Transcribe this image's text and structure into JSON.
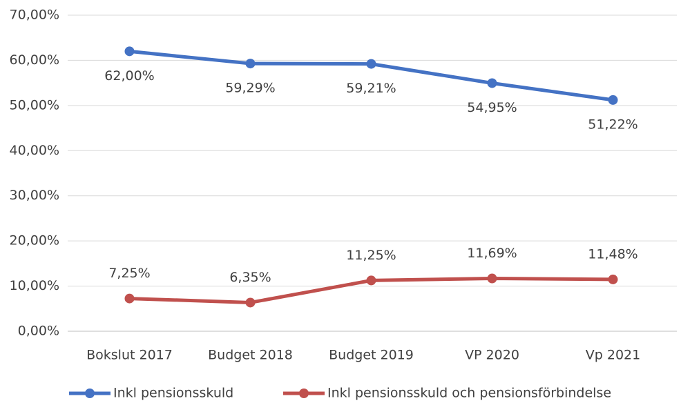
{
  "chart_data": {
    "type": "line",
    "categories": [
      "Bokslut 2017",
      "Budget 2018",
      "Budget 2019",
      "VP 2020",
      "Vp 2021"
    ],
    "series": [
      {
        "name": "Inkl pensionsskuld",
        "color": "#4472c4",
        "values": [
          62.0,
          59.29,
          59.21,
          54.95,
          51.22
        ],
        "value_labels": [
          "62,00%",
          "59,29%",
          "59,21%",
          "54,95%",
          "51,22%"
        ],
        "label_position": "below"
      },
      {
        "name": "Inkl pensionsskuld och pensionsförbindelse",
        "color": "#c0504d",
        "values": [
          7.25,
          6.35,
          11.25,
          11.69,
          11.48
        ],
        "value_labels": [
          "7,25%",
          "6,35%",
          "11,25%",
          "11,69%",
          "11,48%"
        ],
        "label_position": "above"
      }
    ],
    "ylim": [
      0,
      70
    ],
    "yticks": [
      {
        "value": 0,
        "label": "0,00%"
      },
      {
        "value": 10,
        "label": "10,00%"
      },
      {
        "value": 20,
        "label": "20,00%"
      },
      {
        "value": 30,
        "label": "30,00%"
      },
      {
        "value": 40,
        "label": "40,00%"
      },
      {
        "value": 50,
        "label": "50,00%"
      },
      {
        "value": 60,
        "label": "60,00%"
      },
      {
        "value": 70,
        "label": "70,00%"
      }
    ],
    "grid": true,
    "legend": "bottom"
  }
}
